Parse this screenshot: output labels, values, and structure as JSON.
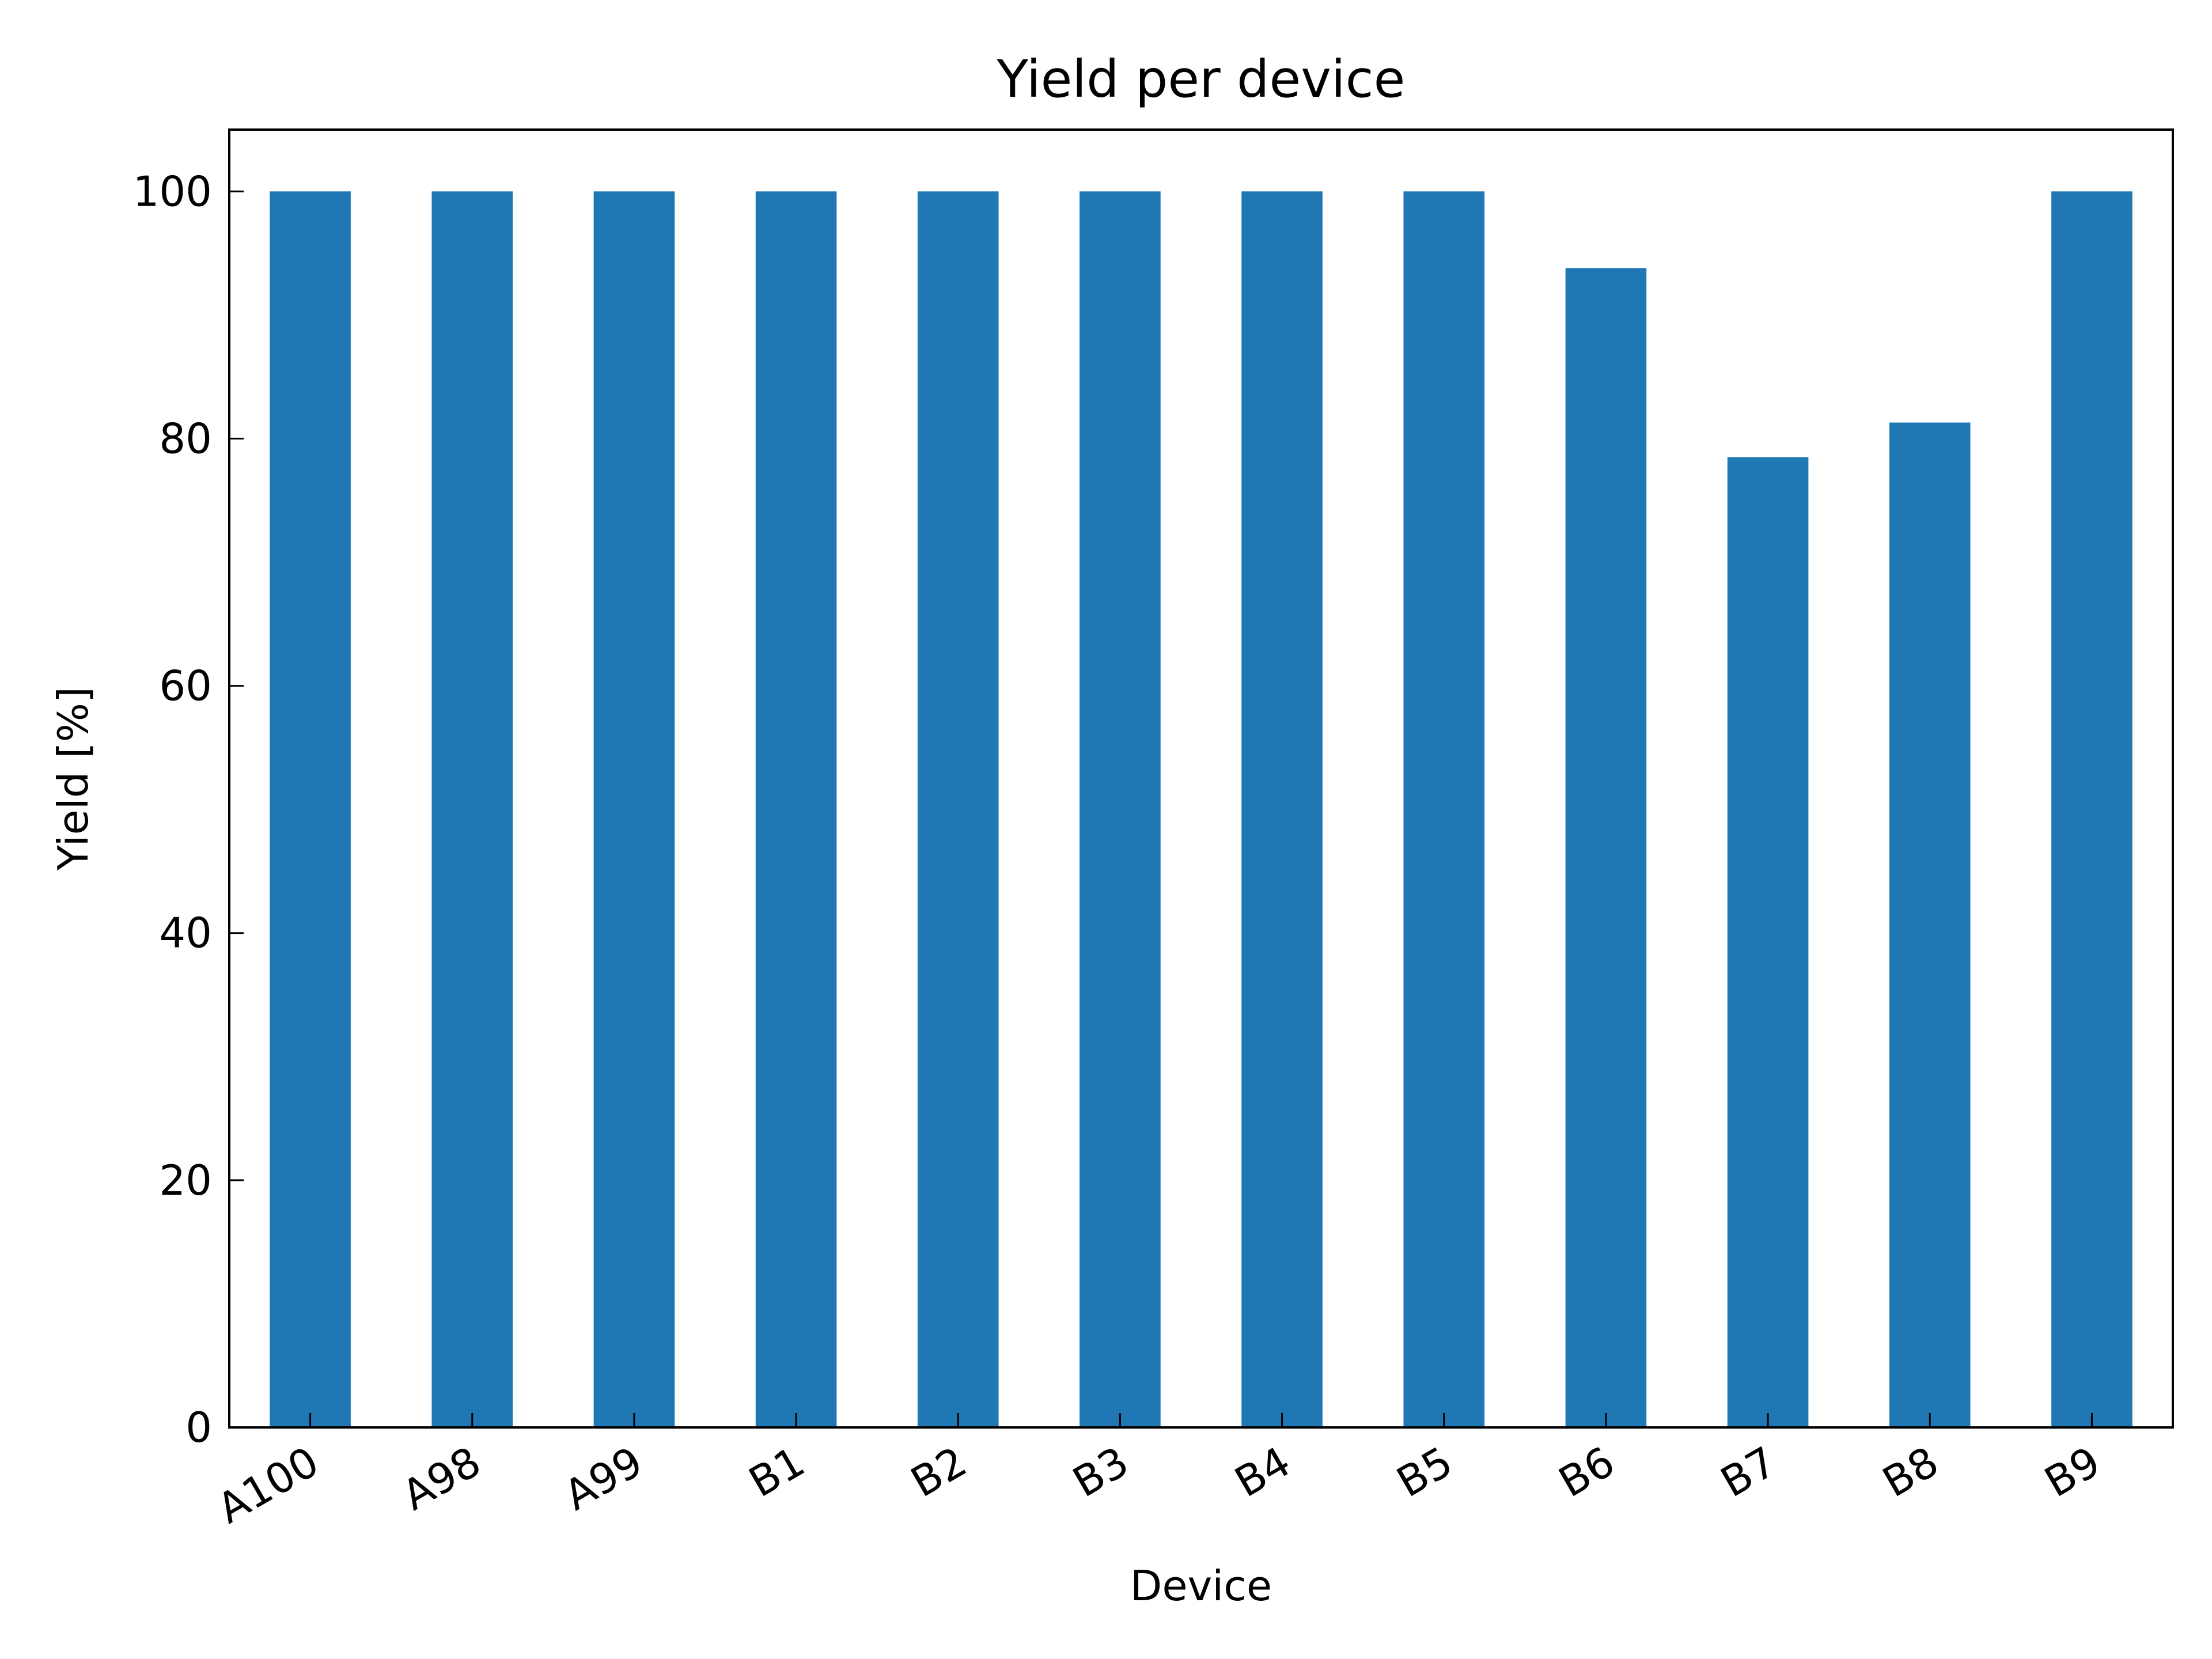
{
  "chart_data": {
    "type": "bar",
    "title": "Yield per device",
    "xlabel": "Device",
    "ylabel": "Yield [%]",
    "ylim": [
      0,
      105
    ],
    "yticks": [
      0,
      20,
      40,
      60,
      80,
      100
    ],
    "grid": false,
    "bar_color": "#1f77b4",
    "categories": [
      "A100",
      "A98",
      "A99",
      "B1",
      "B2",
      "B3",
      "B4",
      "B5",
      "B6",
      "B7",
      "B8",
      "B9"
    ],
    "values": [
      100,
      100,
      100,
      100,
      100,
      100,
      100,
      100,
      93.8,
      78.5,
      81.3,
      100
    ]
  }
}
